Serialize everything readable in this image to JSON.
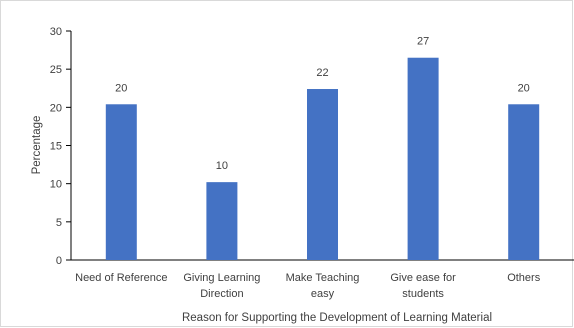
{
  "chart_data": {
    "type": "bar",
    "categories": [
      [
        "Need of Reference"
      ],
      [
        "Giving Learning",
        "Direction"
      ],
      [
        "Make Teaching",
        "easy"
      ],
      [
        "Give ease for",
        "students"
      ],
      [
        "Others"
      ]
    ],
    "values": [
      20.4,
      10.2,
      22.4,
      26.5,
      20.4
    ],
    "data_labels": [
      "20",
      "10",
      "22",
      "27",
      "20"
    ],
    "title": "",
    "xlabel": "Reason for Supporting the Development of Learning Material",
    "ylabel": "Percentage",
    "ylim": [
      0,
      30
    ],
    "yticks": [
      0,
      5,
      10,
      15,
      20,
      25,
      30
    ],
    "grid": false,
    "legend": "none",
    "bar_color": "#4472c4"
  }
}
